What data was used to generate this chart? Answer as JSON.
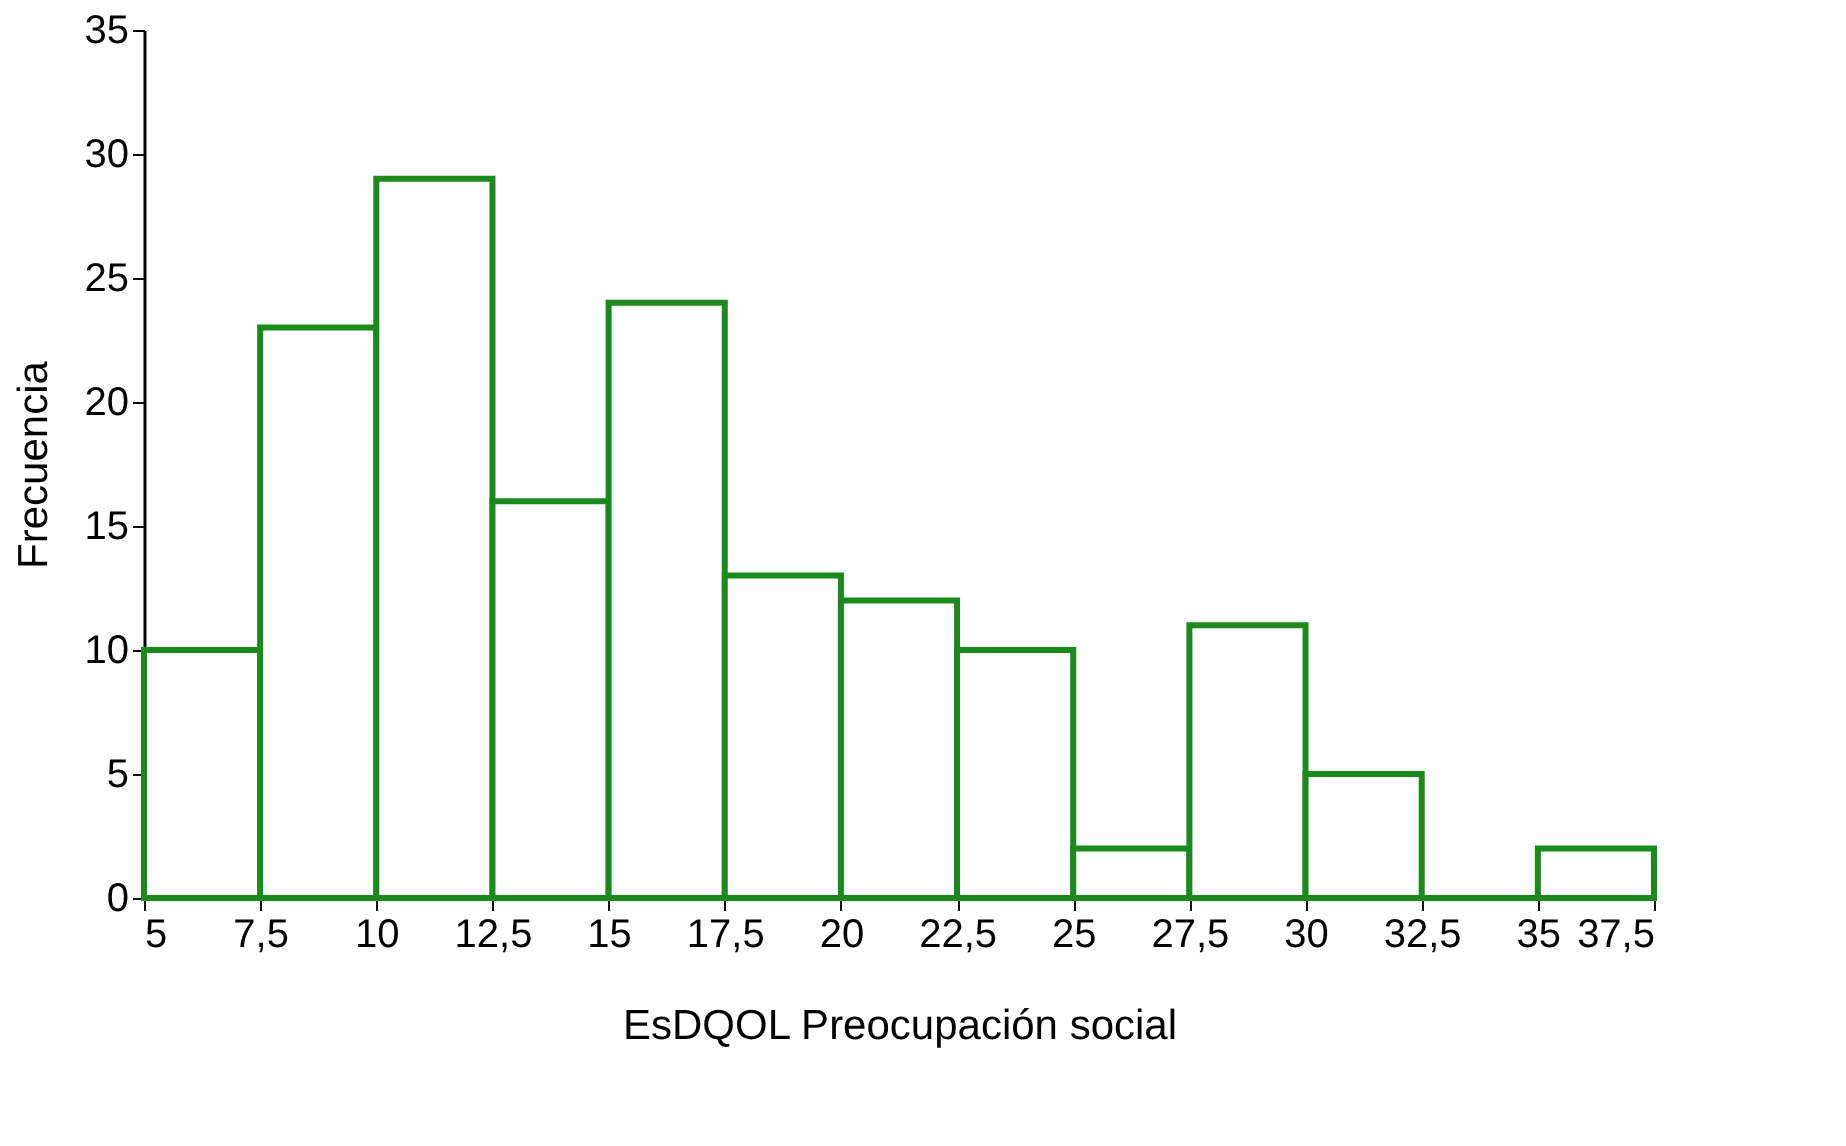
{
  "chart_data": {
    "type": "histogram",
    "xlabel": "EsDQOL Preocupación social",
    "ylabel": "Frecuencia",
    "bins": [
      5,
      7.5,
      10,
      12.5,
      15,
      17.5,
      20,
      22.5,
      25,
      27.5,
      30,
      32.5,
      35,
      37.5
    ],
    "values": [
      10,
      23,
      29,
      16,
      24,
      13,
      12,
      10,
      2,
      11,
      5,
      0,
      2
    ],
    "color": "#1a8a1a",
    "grid": false,
    "xlim": [
      5,
      37.5
    ],
    "ylim": [
      0,
      35
    ],
    "xticks": [
      5,
      {
        "value": 7.5,
        "label": "7,5"
      },
      10,
      {
        "value": 12.5,
        "label": "12,5"
      },
      15,
      {
        "value": 17.5,
        "label": "17,5"
      },
      20,
      {
        "value": 22.5,
        "label": "22,5"
      },
      25,
      {
        "value": 27.5,
        "label": "27,5"
      },
      30,
      {
        "value": 32.5,
        "label": "32,5"
      },
      35,
      {
        "value": 37.5,
        "label": "37,5"
      }
    ],
    "yticks": [
      0,
      5,
      10,
      15,
      20,
      25,
      30,
      35
    ]
  }
}
